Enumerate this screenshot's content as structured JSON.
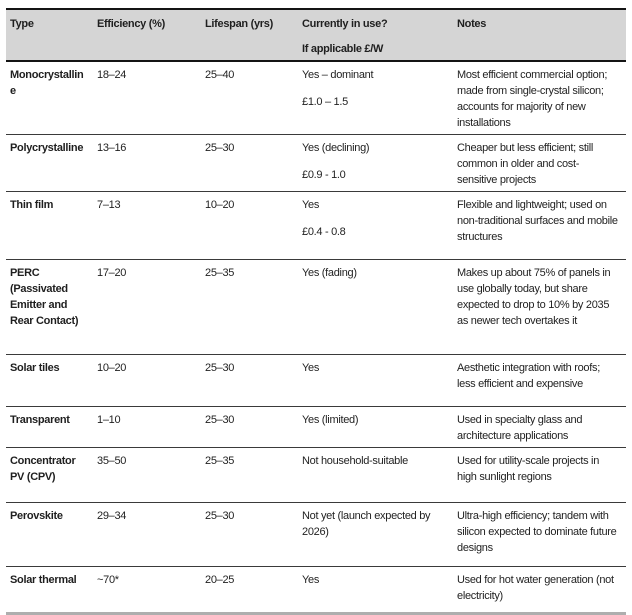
{
  "table": {
    "columns": [
      "Type",
      "Efficiency (%)",
      "Lifespan (yrs)",
      "Currently in use?",
      "Notes"
    ],
    "header_sub": "If applicable £/W",
    "rows": [
      {
        "type": "Monocrystalline",
        "efficiency": "18–24",
        "lifespan": "25–40",
        "in_use": "Yes – dominant",
        "price": "£1.0 – 1.5",
        "notes": "Most efficient commercial option; made from single-crystal silicon; accounts for majority of new installations"
      },
      {
        "type": "Polycrystalline",
        "efficiency": "13–16",
        "lifespan": "25–30",
        "in_use": "Yes (declining)",
        "price": "£0.9 - 1.0",
        "notes": "Cheaper but less efficient; still common in older and cost-sensitive projects"
      },
      {
        "type": "Thin film",
        "efficiency": "7–13",
        "lifespan": "10–20",
        "in_use": "Yes",
        "price": "£0.4 - 0.8",
        "notes": "Flexible and lightweight; used on non-traditional surfaces and mobile structures"
      },
      {
        "type": "PERC (Passivated Emitter and Rear Contact)",
        "efficiency": "17–20",
        "lifespan": "25–35",
        "in_use": "Yes (fading)",
        "price": "",
        "notes": "Makes up about 75% of panels in use globally today, but share expected to drop to 10% by 2035 as newer tech overtakes it"
      },
      {
        "type": "Solar tiles",
        "efficiency": "10–20",
        "lifespan": "25–30",
        "in_use": "Yes",
        "price": "",
        "notes": "Aesthetic integration with roofs; less efficient and expensive"
      },
      {
        "type": "Transparent",
        "efficiency": "1–10",
        "lifespan": "25–30",
        "in_use": "Yes (limited)",
        "price": "",
        "notes": "Used in specialty glass and architecture applications"
      },
      {
        "type": "Concentrator PV (CPV)",
        "efficiency": "35–50",
        "lifespan": "25–35",
        "in_use": "Not household-suitable",
        "price": "",
        "notes": "Used for utility-scale projects in high sunlight regions"
      },
      {
        "type": "Perovskite",
        "efficiency": "29–34",
        "lifespan": "25–30",
        "in_use": "Not yet (launch expected by 2026)",
        "price": "",
        "notes": "Ultra-high efficiency; tandem with silicon expected to dominate future designs"
      },
      {
        "type": "Solar thermal",
        "efficiency": "~70*",
        "lifespan": "20–25",
        "in_use": "Yes",
        "price": "",
        "notes": "Used for hot water generation (not electricity)"
      }
    ]
  }
}
